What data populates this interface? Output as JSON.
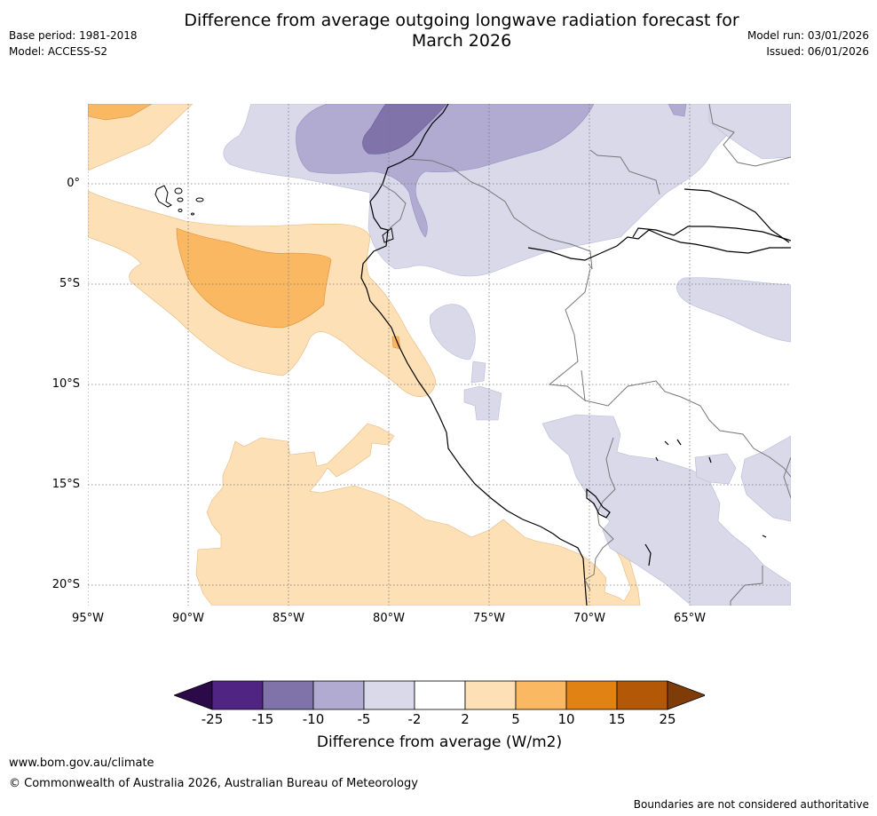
{
  "title": {
    "line1": "Difference from average outgoing longwave radiation forecast for",
    "line2": "March 2026"
  },
  "meta": {
    "base_period": "Base period: 1981-2018",
    "model": "Model: ACCESS-S2",
    "model_run": "Model run: 03/01/2026",
    "issued": "Issued: 06/01/2026"
  },
  "map": {
    "region": "Western South America and eastern Pacific",
    "lat_labels": [
      "0°",
      "5°S",
      "10°S",
      "15°S",
      "20°S"
    ],
    "lon_labels": [
      "95°W",
      "90°W",
      "85°W",
      "80°W",
      "75°W",
      "70°W",
      "65°W"
    ],
    "lat_range": [
      -21,
      4
    ],
    "lon_range": [
      -95,
      -60
    ]
  },
  "colorbar": {
    "ticks": [
      "-25",
      "-15",
      "-10",
      "-5",
      "-2",
      "2",
      "5",
      "10",
      "15",
      "25"
    ],
    "colors": {
      "below_min": "#2c0a4a",
      "bins": [
        "#4f2483",
        "#8073aa",
        "#b1aad1",
        "#d9d9ea",
        "#ffffff",
        "#fde0b5",
        "#fbb862",
        "#e08214",
        "#b35806"
      ],
      "above_max": "#7f3b08"
    },
    "title": "Difference from average (W/m2)"
  },
  "footer": {
    "url": "www.bom.gov.au/climate",
    "copyright": "© Commonwealth of Australia 2026, Australian Bureau of Meteorology",
    "disclaimer": "Boundaries are not considered authoritative"
  }
}
